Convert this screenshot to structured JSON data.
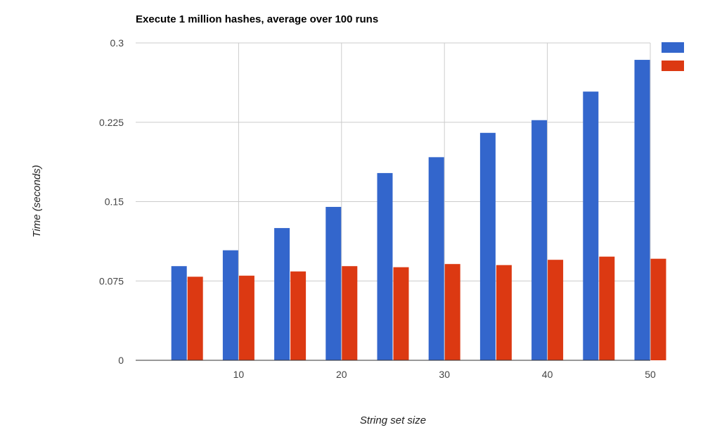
{
  "chart_data": {
    "type": "bar",
    "title": "Execute 1 million hashes, average over 100 runs",
    "xlabel": "String set size",
    "ylabel": "Time (seconds)",
    "categories": [
      5,
      10,
      15,
      20,
      25,
      30,
      35,
      40,
      45,
      50
    ],
    "x_ticks": [
      "10",
      "20",
      "30",
      "40",
      "50"
    ],
    "y_ticks": [
      "0",
      "0.075",
      "0.15",
      "0.225",
      "0.3"
    ],
    "ylim": [
      0,
      0.3
    ],
    "grid": true,
    "legend": {
      "position": "right",
      "show_labels": false
    },
    "series": [
      {
        "color": "#3366cc",
        "values": [
          0.089,
          0.104,
          0.125,
          0.145,
          0.177,
          0.192,
          0.215,
          0.227,
          0.254,
          0.284
        ]
      },
      {
        "color": "#dc3912",
        "values": [
          0.079,
          0.08,
          0.084,
          0.089,
          0.088,
          0.091,
          0.09,
          0.095,
          0.098,
          0.096
        ]
      }
    ]
  }
}
